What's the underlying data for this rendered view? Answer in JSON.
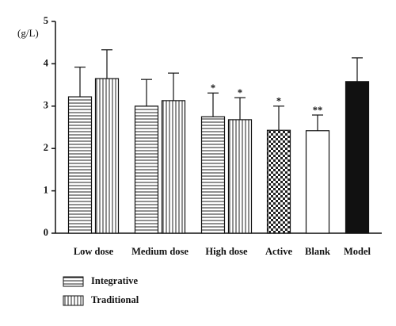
{
  "chart_data": {
    "type": "bar",
    "ylabel": "(g/L)",
    "categories": [
      "Low dose",
      "Medium dose",
      "High dose",
      "Active",
      "Blank",
      "Model"
    ],
    "ylim": [
      0,
      5
    ],
    "yticks": [
      0,
      1,
      2,
      3,
      4,
      5
    ],
    "series": [
      {
        "name": "Integrative",
        "pattern": "horizontal",
        "values": [
          3.22,
          3.0,
          2.75,
          null,
          null,
          null
        ],
        "errors": [
          0.7,
          0.63,
          0.56,
          null,
          null,
          null
        ],
        "marks": [
          null,
          null,
          "*",
          null,
          null,
          null
        ]
      },
      {
        "name": "Traditional",
        "pattern": "vertical",
        "values": [
          3.65,
          3.13,
          2.68,
          null,
          null,
          null
        ],
        "errors": [
          0.68,
          0.65,
          0.52,
          null,
          null,
          null
        ],
        "marks": [
          null,
          null,
          "*",
          null,
          null,
          null
        ]
      }
    ],
    "others": {
      "values": [
        null,
        null,
        null,
        2.43,
        2.42,
        3.58
      ],
      "errors": [
        null,
        null,
        null,
        0.57,
        0.37,
        0.56
      ],
      "patterns": [
        null,
        null,
        null,
        "checker",
        "white",
        "black"
      ],
      "marks": [
        null,
        null,
        null,
        "*",
        "**",
        null
      ]
    }
  }
}
